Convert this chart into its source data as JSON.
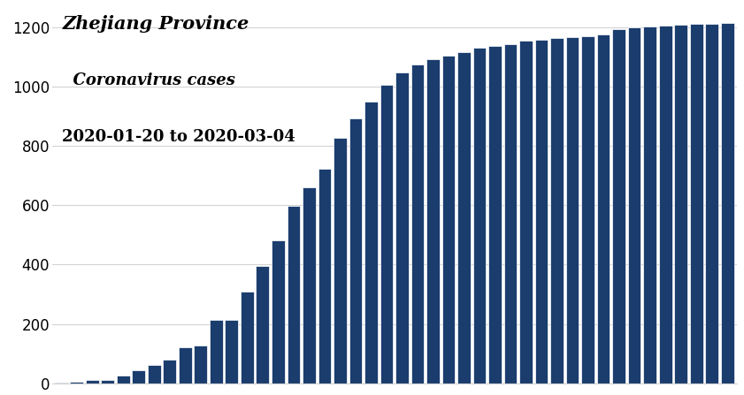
{
  "title_line1": "Zhejiang Province",
  "title_line2": "  Coronavirus cases",
  "subtitle": "2020-01-20 to 2020-03-04",
  "bar_color": "#1a3d6e",
  "background_color": "#ffffff",
  "ylim": [
    0,
    1280
  ],
  "yticks": [
    0,
    200,
    400,
    600,
    800,
    1000,
    1200
  ],
  "values": [
    1,
    5,
    10,
    10,
    27,
    43,
    62,
    79,
    121,
    128,
    215,
    215,
    309,
    396,
    483,
    599,
    661,
    724,
    829,
    895,
    950,
    1006,
    1049,
    1075,
    1092,
    1105,
    1117,
    1131,
    1139,
    1145,
    1155,
    1159,
    1165,
    1167,
    1172,
    1177,
    1195,
    1201,
    1205,
    1208,
    1210,
    1212,
    1213,
    1215
  ]
}
